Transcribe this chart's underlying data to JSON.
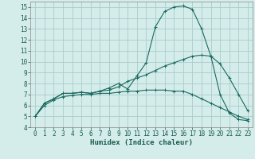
{
  "xlabel": "Humidex (Indice chaleur)",
  "ylabel": "",
  "background_color": "#d4ecea",
  "grid_color": "#aacccc",
  "line_color": "#1a6a60",
  "xlim": [
    -0.5,
    23.5
  ],
  "ylim": [
    4,
    15.5
  ],
  "xticks": [
    0,
    1,
    2,
    3,
    4,
    5,
    6,
    7,
    8,
    9,
    10,
    11,
    12,
    13,
    14,
    15,
    16,
    17,
    18,
    19,
    20,
    21,
    22,
    23
  ],
  "yticks": [
    4,
    5,
    6,
    7,
    8,
    9,
    10,
    11,
    12,
    13,
    14,
    15
  ],
  "line1_x": [
    0,
    1,
    2,
    3,
    4,
    5,
    6,
    7,
    8,
    9,
    10,
    11,
    12,
    13,
    14,
    15,
    16,
    17,
    18,
    19,
    20,
    21,
    22,
    23
  ],
  "line1_y": [
    5.0,
    6.2,
    6.6,
    7.1,
    7.1,
    7.2,
    7.1,
    7.3,
    7.6,
    8.0,
    7.5,
    8.7,
    9.9,
    13.2,
    14.6,
    15.0,
    15.1,
    14.8,
    13.0,
    10.5,
    7.0,
    5.3,
    4.7,
    4.6
  ],
  "line2_x": [
    0,
    1,
    2,
    3,
    4,
    5,
    6,
    7,
    8,
    9,
    10,
    11,
    12,
    13,
    14,
    15,
    16,
    17,
    18,
    19,
    20,
    21,
    22,
    23
  ],
  "line2_y": [
    5.0,
    6.2,
    6.6,
    7.1,
    7.1,
    7.2,
    7.1,
    7.3,
    7.4,
    7.7,
    8.2,
    8.5,
    8.8,
    9.2,
    9.6,
    9.9,
    10.2,
    10.5,
    10.6,
    10.5,
    9.8,
    8.5,
    7.0,
    5.5
  ],
  "line3_x": [
    0,
    1,
    2,
    3,
    4,
    5,
    6,
    7,
    8,
    9,
    10,
    11,
    12,
    13,
    14,
    15,
    16,
    17,
    18,
    19,
    20,
    21,
    22,
    23
  ],
  "line3_y": [
    5.0,
    6.0,
    6.5,
    6.8,
    6.9,
    7.0,
    7.0,
    7.1,
    7.1,
    7.2,
    7.3,
    7.3,
    7.4,
    7.4,
    7.4,
    7.3,
    7.3,
    7.0,
    6.6,
    6.2,
    5.8,
    5.4,
    5.0,
    4.7
  ],
  "tick_fontsize": 5.5,
  "xlabel_fontsize": 6.5
}
